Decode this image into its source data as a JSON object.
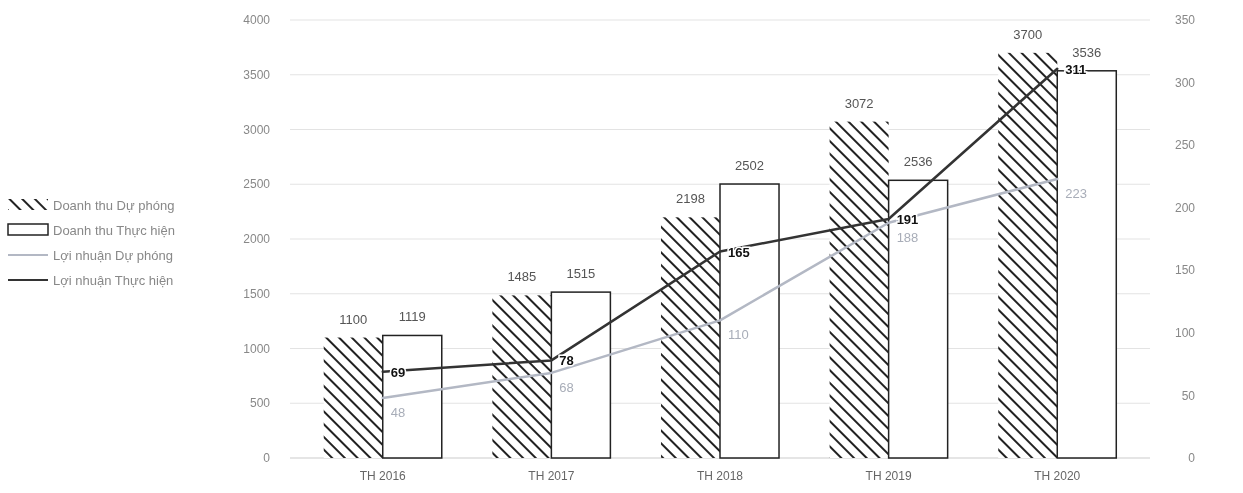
{
  "chart_data": {
    "type": "bar",
    "categories": [
      "TH 2016",
      "TH 2017",
      "TH 2018",
      "TH 2019",
      "TH 2020"
    ],
    "series": [
      {
        "name": "Doanh thu Dự phóng",
        "color": "#222222",
        "values": [
          1100,
          1485,
          2198,
          3072,
          3700
        ]
      },
      {
        "name": "Doanh thu Thực hiện",
        "color": "#ffffff",
        "values": [
          1119,
          1515,
          2502,
          2536,
          3536
        ]
      },
      {
        "name": "Lợi nhuận Dự phóng",
        "type": "line",
        "axis": "y2",
        "color": "#b3b8c4",
        "values": [
          48,
          68,
          110,
          188,
          223
        ]
      },
      {
        "name": "Lợi nhuận Thực hiện",
        "type": "line",
        "axis": "y2",
        "color": "#333333",
        "values": [
          69,
          78,
          165,
          191,
          311
        ]
      }
    ],
    "ylim": [
      0,
      4000
    ],
    "yticks": [
      0,
      500,
      1000,
      1500,
      2000,
      2500,
      3000,
      3500,
      4000
    ],
    "y2lim": [
      0,
      350
    ],
    "y2ticks": [
      0,
      50,
      100,
      150,
      200,
      250,
      300,
      350
    ],
    "grid": "y",
    "legend": "left",
    "data_labels": true,
    "marker": "none",
    "line_style": "solid"
  }
}
